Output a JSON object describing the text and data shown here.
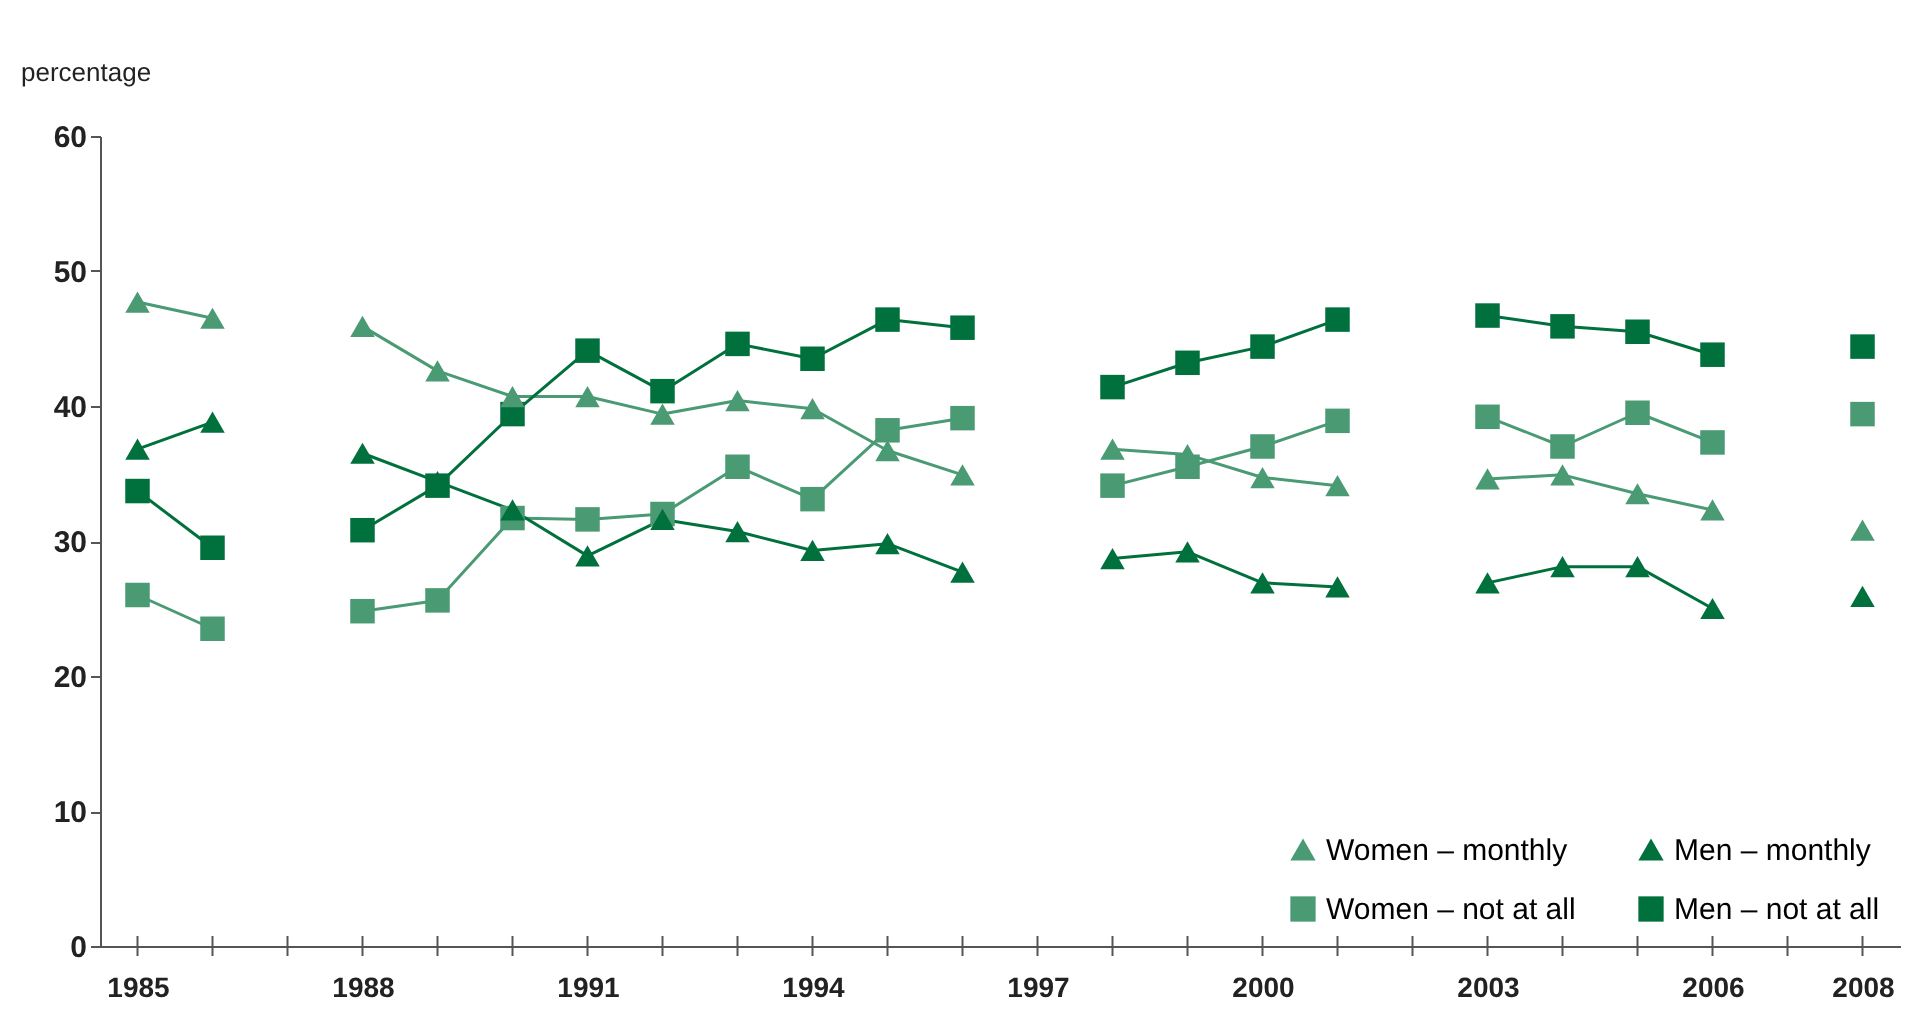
{
  "chart_data": {
    "type": "line",
    "ylabel": "percentage",
    "x": [
      1985,
      1986,
      1987,
      1988,
      1989,
      1990,
      1991,
      1992,
      1993,
      1994,
      1995,
      1996,
      1997,
      1998,
      1999,
      2000,
      2001,
      2002,
      2003,
      2004,
      2005,
      2006,
      2007,
      2008
    ],
    "series": [
      {
        "name": "Women – monthly",
        "color": "#4a9a74",
        "marker": "triangle",
        "values": [
          47.7,
          46.5,
          null,
          45.9,
          42.6,
          40.7,
          40.7,
          39.4,
          40.4,
          39.8,
          36.7,
          34.9,
          null,
          36.8,
          36.4,
          34.7,
          34.1,
          null,
          34.6,
          34.9,
          33.5,
          32.3,
          null,
          30.8
        ]
      },
      {
        "name": "Women – not at all",
        "color": "#4a9a74",
        "marker": "square",
        "values": [
          26.0,
          23.5,
          null,
          24.8,
          25.6,
          31.7,
          31.6,
          32.0,
          35.5,
          33.1,
          38.2,
          39.1,
          null,
          34.1,
          35.5,
          37.0,
          38.9,
          null,
          39.2,
          37.0,
          39.5,
          37.3,
          null,
          39.4
        ]
      },
      {
        "name": "Men – monthly",
        "color": "#00703c",
        "marker": "triangle",
        "values": [
          36.8,
          38.8,
          null,
          36.5,
          34.4,
          32.3,
          28.9,
          31.6,
          30.7,
          29.3,
          29.8,
          27.7,
          null,
          28.7,
          29.2,
          26.9,
          26.6,
          null,
          26.9,
          28.1,
          28.1,
          25.0,
          null,
          25.9
        ]
      },
      {
        "name": "Men – not at all",
        "color": "#00703c",
        "marker": "square",
        "values": [
          33.7,
          29.5,
          null,
          30.8,
          34.1,
          39.4,
          44.1,
          41.1,
          44.6,
          43.5,
          46.4,
          45.8,
          null,
          41.4,
          43.2,
          44.4,
          46.4,
          null,
          46.7,
          45.9,
          45.5,
          43.8,
          null,
          44.4
        ]
      }
    ],
    "xlim": [
      1984.5,
      2008.5
    ],
    "xticks": [
      1985,
      {
        "value": 1986,
        "label": null
      },
      {
        "value": 1987,
        "label": null
      },
      1988,
      {
        "value": 1989,
        "label": null
      },
      {
        "value": 1990,
        "label": null
      },
      1991,
      {
        "value": 1992,
        "label": null
      },
      {
        "value": 1993,
        "label": null
      },
      1994,
      {
        "value": 1995,
        "label": null
      },
      {
        "value": 1996,
        "label": null
      },
      1997,
      {
        "value": 1998,
        "label": null
      },
      {
        "value": 1999,
        "label": null
      },
      2000,
      {
        "value": 2001,
        "label": null
      },
      {
        "value": 2002,
        "label": null
      },
      2003,
      {
        "value": 2004,
        "label": null
      },
      {
        "value": 2005,
        "label": null
      },
      2006,
      {
        "value": 2007,
        "label": null
      },
      2008
    ],
    "ylim": [
      0,
      60
    ],
    "yticks": [
      0,
      10,
      20,
      30,
      40,
      50,
      60
    ],
    "grid": false,
    "legend": "bottom right",
    "line_style": "solid"
  }
}
